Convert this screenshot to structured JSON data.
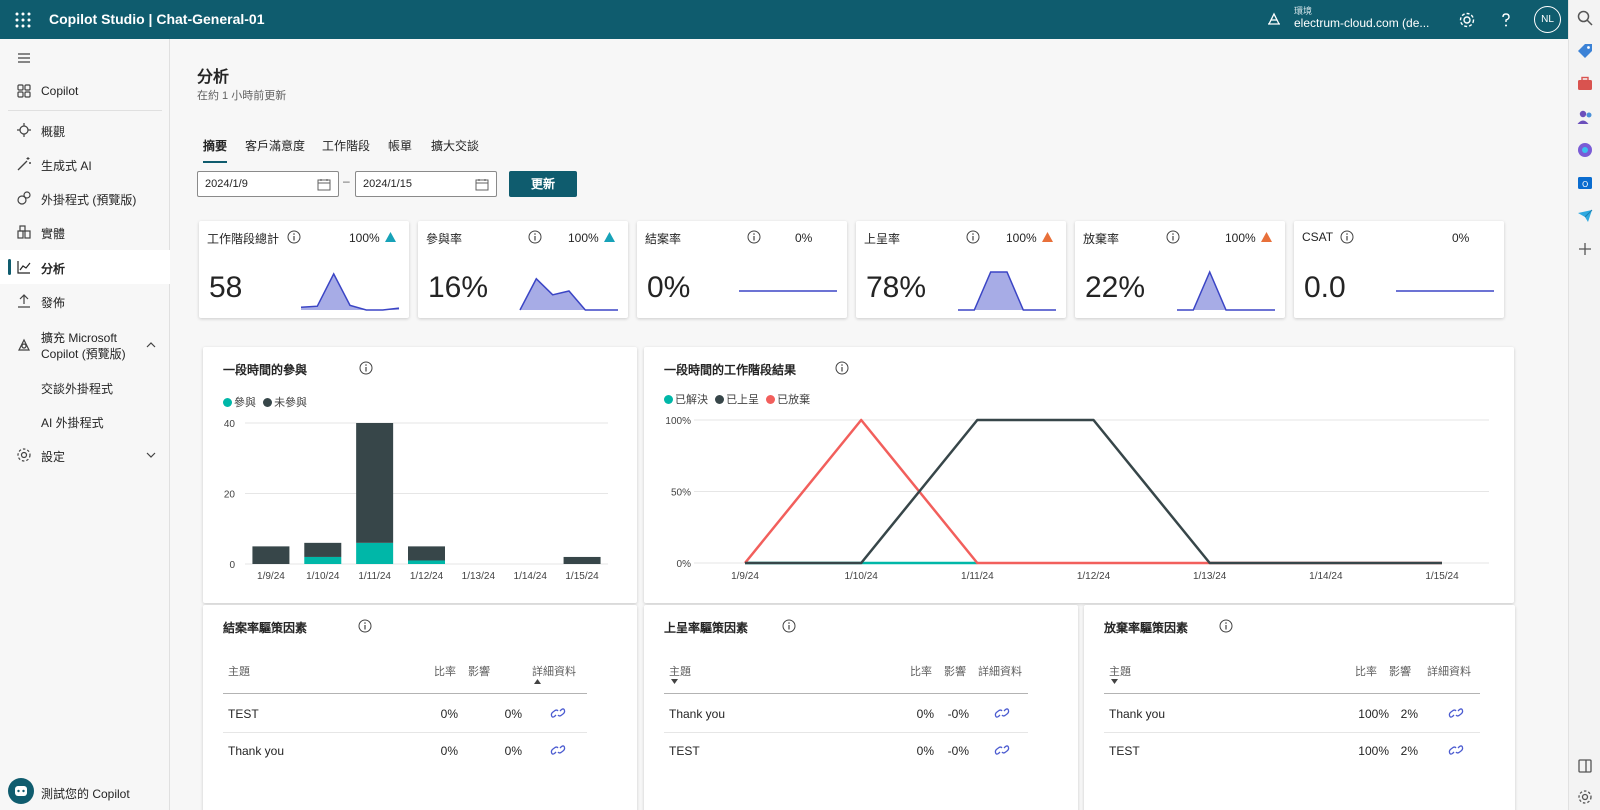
{
  "topbar": {
    "app_title": "Copilot Studio | Chat-General-01",
    "env_label": "環境",
    "env_name": "electrum-cloud.com (de...",
    "avatar": "NL",
    "icons": [
      "waffle-icon",
      "environment-icon",
      "settings-icon",
      "help-icon"
    ]
  },
  "sidebar": {
    "items": [
      {
        "label": "Copilot",
        "icon": "copilot-grid-icon"
      },
      {
        "label": "概觀",
        "icon": "overview-icon"
      },
      {
        "label": "生成式 AI",
        "icon": "magic-wand-icon"
      },
      {
        "label": "外掛程式 (預覽版)",
        "icon": "plugin-icon"
      },
      {
        "label": "實體",
        "icon": "entities-icon"
      },
      {
        "label": "分析",
        "icon": "analytics-icon",
        "active": true
      },
      {
        "label": "發佈",
        "icon": "publish-icon"
      },
      {
        "label": "擴充 Microsoft Copilot (預覽版)",
        "line1": "擴充 Microsoft",
        "line2": "Copilot (預覽版)",
        "icon": "extend-icon",
        "expanded": true
      },
      {
        "label": "交談外掛程式",
        "sub": true
      },
      {
        "label": "AI 外掛程式",
        "sub": true
      },
      {
        "label": "設定",
        "icon": "settings-icon",
        "expanded": false
      }
    ],
    "test_copilot": "測試您的 Copilot"
  },
  "main": {
    "title": "分析",
    "subtitle": "在約 1 小時前更新",
    "tabs": [
      "摘要",
      "客戶滿意度",
      "工作階段",
      "帳單",
      "擴大交談"
    ],
    "active_tab": "摘要",
    "date_from": "2024/1/9",
    "date_to": "2024/1/15",
    "date_separator": "–",
    "refresh": "更新"
  },
  "colors": {
    "brand": "#0f5c6e",
    "teal": "#00b7a8",
    "dark": "#374649",
    "red": "#f25f5c",
    "trend_up_teal": "#17a2b8",
    "trend_up_orange": "#e8703a",
    "spark_line": "#3b45c5",
    "spark_fill": "#a7ace6"
  },
  "kpis": [
    {
      "title": "工作階段總計",
      "value": "58",
      "pct": "100%",
      "trend": "up",
      "trend_color": "#17a2b8",
      "spark": [
        0.07,
        0.1,
        0.95,
        0.12,
        0.0,
        0.0,
        0.05
      ]
    },
    {
      "title": "參與率",
      "value": "16%",
      "pct": "100%",
      "trend": "up",
      "trend_color": "#17a2b8",
      "spark": [
        0.0,
        0.82,
        0.4,
        0.5,
        0.0,
        0.0,
        0.0
      ]
    },
    {
      "title": "結案率",
      "value": "0%",
      "pct": "0%",
      "trend": "none",
      "spark": [
        0.5,
        0.5,
        0.5,
        0.5,
        0.5,
        0.5,
        0.5
      ]
    },
    {
      "title": "上呈率",
      "value": "78%",
      "pct": "100%",
      "trend": "up",
      "trend_color": "#e8703a",
      "spark": [
        0.0,
        0.0,
        1.0,
        1.0,
        0.0,
        0.0,
        0.0
      ]
    },
    {
      "title": "放棄率",
      "value": "22%",
      "pct": "100%",
      "trend": "up",
      "trend_color": "#e8703a",
      "spark": [
        0.0,
        0.0,
        1.0,
        0.0,
        0.0,
        0.0,
        0.0
      ]
    },
    {
      "title": "CSAT",
      "value": "0.0",
      "pct": "0%",
      "trend": "none",
      "spark": [
        0.5,
        0.5,
        0.5,
        0.5,
        0.5,
        0.5,
        0.5
      ]
    }
  ],
  "chart_data": [
    {
      "type": "bar",
      "title": "一段時間的參與",
      "categories": [
        "1/9/24",
        "1/10/24",
        "1/11/24",
        "1/12/24",
        "1/13/24",
        "1/14/24",
        "1/15/24"
      ],
      "series": [
        {
          "name": "參與",
          "color": "#00b7a8",
          "values": [
            0,
            2,
            6,
            1,
            0,
            0,
            0
          ]
        },
        {
          "name": "未參與",
          "color": "#374649",
          "values": [
            5,
            4,
            34,
            4,
            0,
            0,
            2
          ]
        }
      ],
      "y_ticks": [
        "0",
        "20",
        "40"
      ],
      "ylim": [
        0,
        40
      ],
      "stacked": true,
      "grid": true,
      "legend": "top-left"
    },
    {
      "type": "line",
      "title": "一段時間的工作階段結果",
      "categories": [
        "1/9/24",
        "1/10/24",
        "1/11/24",
        "1/12/24",
        "1/13/24",
        "1/14/24",
        "1/15/24"
      ],
      "series": [
        {
          "name": "已解決",
          "color": "#00b7a8",
          "values": [
            0,
            0,
            0,
            0,
            0,
            0,
            0
          ]
        },
        {
          "name": "已上呈",
          "color": "#374649",
          "values": [
            0,
            0,
            100,
            100,
            0,
            0,
            0
          ]
        },
        {
          "name": "已放棄",
          "color": "#f25f5c",
          "values": [
            0,
            100,
            0,
            0,
            0,
            0,
            0
          ]
        }
      ],
      "y_ticks": [
        "0%",
        "50%",
        "100%"
      ],
      "ylim": [
        0,
        100
      ],
      "grid": true,
      "legend": "top-left"
    }
  ],
  "driver_tables": [
    {
      "title": "結案率驅策因素",
      "headers": {
        "topic": "主題",
        "rate": "比率",
        "impact": "影響",
        "details": "詳細資料"
      },
      "sorted_col": "details",
      "rows": [
        {
          "topic": "TEST",
          "rate": "0%",
          "impact": "0%"
        },
        {
          "topic": "Thank you",
          "rate": "0%",
          "impact": "0%"
        }
      ]
    },
    {
      "title": "上呈率驅策因素",
      "headers": {
        "topic": "主題",
        "rate": "比率",
        "impact": "影響",
        "details": "詳細資料"
      },
      "sorted_col": "topic",
      "rows": [
        {
          "topic": "Thank you",
          "rate": "0%",
          "impact": "-0%"
        },
        {
          "topic": "TEST",
          "rate": "0%",
          "impact": "-0%"
        }
      ]
    },
    {
      "title": "放棄率驅策因素",
      "headers": {
        "topic": "主題",
        "rate": "比率",
        "impact": "影響",
        "details": "詳細資料"
      },
      "sorted_col": "topic",
      "rows": [
        {
          "topic": "Thank you",
          "rate": "100%",
          "impact": "2%"
        },
        {
          "topic": "TEST",
          "rate": "100%",
          "impact": "2%"
        }
      ]
    }
  ]
}
